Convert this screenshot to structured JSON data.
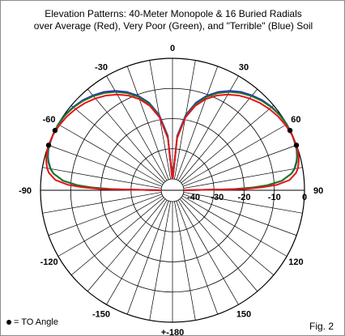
{
  "title_line1": "Elevation Patterns: 40-Meter Monopole & 16 Buried Radials",
  "title_line2": "over Average (Red), Very Poor (Green), and \"Terrible\" (Blue) Soil",
  "legend_text": "= TO Angle",
  "figure_label": "Fig. 2",
  "colors": {
    "average": "#e8121c",
    "very_poor": "#1e7a1e",
    "terrible": "#2121e0",
    "grid": "#000000",
    "to_marker": "#000000"
  },
  "chart_data": {
    "type": "polar-elevation",
    "angle_ticks": [
      {
        "angle": 0,
        "label": "0"
      },
      {
        "angle": 30,
        "label": "30"
      },
      {
        "angle": 60,
        "label": "60"
      },
      {
        "angle": 90,
        "label": "90"
      },
      {
        "angle": 120,
        "label": "120"
      },
      {
        "angle": 150,
        "label": "150"
      },
      {
        "angle": 180,
        "label": "+-180"
      },
      {
        "angle": -150,
        "label": "-150"
      },
      {
        "angle": -120,
        "label": "-120"
      },
      {
        "angle": -90,
        "label": "-90"
      },
      {
        "angle": -60,
        "label": "-60"
      },
      {
        "angle": -30,
        "label": "-30"
      }
    ],
    "radial_ticks": [
      {
        "db": 0,
        "label": "0"
      },
      {
        "db": -10,
        "label": "-10"
      },
      {
        "db": -20,
        "label": "-20"
      },
      {
        "db": -30,
        "label": "-30"
      },
      {
        "db": -40,
        "label": "-40"
      }
    ],
    "rlim_db": [
      -40,
      0
    ],
    "angle_spokes_deg": 10,
    "series": [
      {
        "key": "average",
        "elevation_deg": [
          0,
          1,
          2,
          3,
          5,
          8,
          10,
          13,
          15,
          18,
          20,
          25,
          30,
          35,
          40,
          45,
          50,
          55,
          60,
          65,
          70,
          75,
          80,
          85,
          89
        ],
        "gain_db": [
          -40,
          -20,
          -13.5,
          -9,
          -4.8,
          -2.4,
          -1.55,
          -0.8,
          -0.45,
          -0.15,
          -0.05,
          -0.12,
          -0.5,
          -1.05,
          -1.85,
          -2.8,
          -4.0,
          -5.4,
          -7.1,
          -9.1,
          -11.6,
          -14.8,
          -19.3,
          -26.5,
          -40
        ]
      },
      {
        "key": "very_poor",
        "elevation_deg": [
          0,
          1,
          2,
          3,
          5,
          8,
          10,
          13,
          15,
          18,
          20,
          25,
          30,
          35,
          40,
          45,
          50,
          55,
          60,
          65,
          70,
          75,
          80,
          85,
          89
        ],
        "gain_db": [
          -40,
          -24,
          -17,
          -12.5,
          -7.4,
          -3.9,
          -2.6,
          -1.45,
          -0.95,
          -0.45,
          -0.25,
          -0.05,
          -0.05,
          -0.35,
          -0.95,
          -1.85,
          -3.0,
          -4.4,
          -6.1,
          -8.2,
          -10.8,
          -14.1,
          -18.8,
          -26,
          -40
        ]
      },
      {
        "key": "terrible",
        "elevation_deg": [
          0,
          1,
          2,
          3,
          5,
          8,
          10,
          13,
          15,
          18,
          20,
          25,
          30,
          35,
          40,
          45,
          50,
          55,
          60,
          65,
          70,
          75,
          80,
          85,
          89
        ],
        "gain_db": [
          -40,
          -23,
          -16.5,
          -12,
          -7.3,
          -3.95,
          -2.75,
          -1.6,
          -1.05,
          -0.5,
          -0.3,
          -0.05,
          0,
          -0.25,
          -0.8,
          -1.6,
          -2.7,
          -4.0,
          -5.7,
          -7.8,
          -10.4,
          -13.7,
          -18.4,
          -25.6,
          -40
        ]
      }
    ],
    "to_angle_markers": [
      {
        "series": "average",
        "elevation_deg": 20,
        "gain_db": -0.05
      },
      {
        "series": "very_poor",
        "elevation_deg": 27,
        "gain_db": -0.05
      }
    ]
  }
}
